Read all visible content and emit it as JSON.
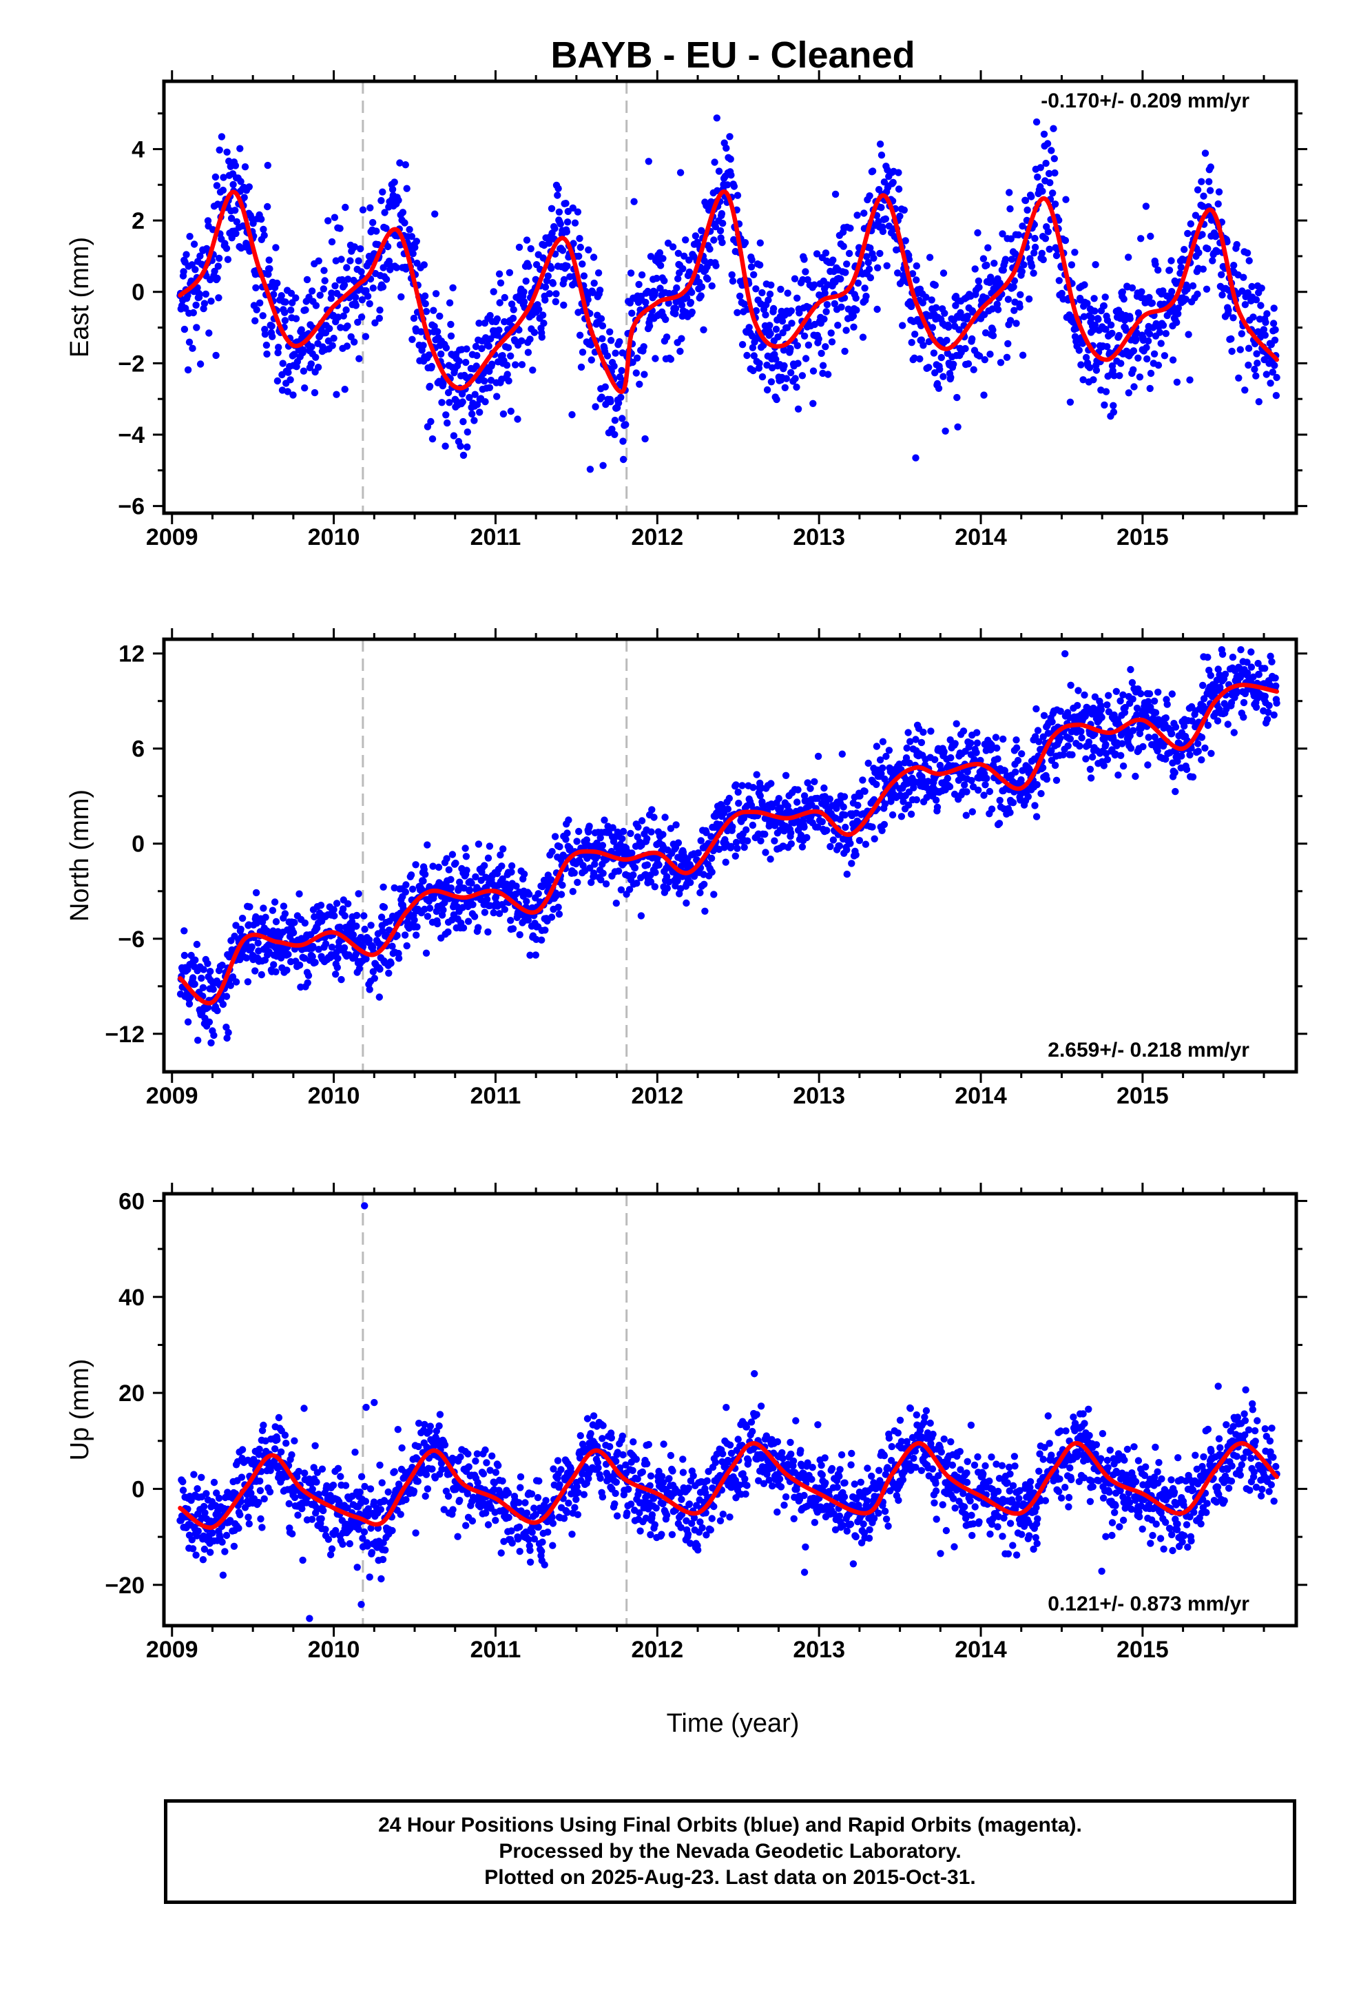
{
  "page": {
    "title": "BAYB  - EU - Cleaned",
    "x_axis_label": "Time (year)",
    "footer": [
      "24 Hour Positions Using Final Orbits (blue) and Rapid Orbits (magenta).",
      "Processed by the Nevada Geodetic Laboratory.",
      "Plotted on 2025-Aug-23. Last data on 2015-Oct-31."
    ]
  },
  "colors": {
    "points": "#0000ff",
    "fit_line": "#ff0000",
    "event_lines": "#bbbbbb",
    "frame": "#000000"
  },
  "chart_data": [
    {
      "type": "scatter",
      "name": "east",
      "ylabel": "East (mm)",
      "rate_text": "-0.170+/- 0.209 mm/yr",
      "rate_position": "top-right",
      "xlim": [
        2008.95,
        2015.95
      ],
      "ylim": [
        -6.2,
        5.9
      ],
      "x_ticks": [
        2009,
        2010,
        2011,
        2012,
        2013,
        2014,
        2015
      ],
      "y_ticks": [
        -6,
        -4,
        -2,
        0,
        2,
        4
      ],
      "event_lines_x": [
        2010.18,
        2011.81
      ],
      "data_start": 2009.05,
      "data_end": 2015.83,
      "trend_mm_per_yr": -0.17,
      "fit": {
        "x": [
          2009.05,
          2009.2,
          2009.38,
          2009.55,
          2009.75,
          2010.0,
          2010.15,
          2010.22,
          2010.4,
          2010.6,
          2010.78,
          2011.0,
          2011.2,
          2011.42,
          2011.6,
          2011.78,
          2011.85,
          2012.0,
          2012.2,
          2012.42,
          2012.6,
          2012.78,
          2013.0,
          2013.2,
          2013.4,
          2013.6,
          2013.78,
          2014.0,
          2014.2,
          2014.4,
          2014.6,
          2014.78,
          2015.0,
          2015.2,
          2015.42,
          2015.6,
          2015.83
        ],
        "y": [
          -0.1,
          0.6,
          2.8,
          0.5,
          -1.5,
          -0.4,
          0.2,
          0.5,
          1.7,
          -1.5,
          -2.7,
          -1.6,
          -0.5,
          1.5,
          -1.2,
          -2.8,
          -1.0,
          -0.3,
          0.2,
          2.8,
          -0.8,
          -1.5,
          -0.3,
          0.2,
          2.7,
          -0.3,
          -1.6,
          -0.5,
          0.5,
          2.6,
          -0.8,
          -1.9,
          -0.7,
          -0.2,
          2.3,
          -0.6,
          -1.9
        ]
      },
      "noise_sd_mm": 0.9
    },
    {
      "type": "scatter",
      "name": "north",
      "ylabel": "North (mm)",
      "rate_text": "2.659+/- 0.218 mm/yr",
      "rate_position": "bottom-right",
      "xlim": [
        2008.95,
        2015.95
      ],
      "ylim": [
        -14.4,
        12.9
      ],
      "x_ticks": [
        2009,
        2010,
        2011,
        2012,
        2013,
        2014,
        2015
      ],
      "y_ticks": [
        -12,
        -6,
        0,
        6,
        12
      ],
      "event_lines_x": [
        2010.18,
        2011.81
      ],
      "data_start": 2009.05,
      "data_end": 2015.83,
      "trend_mm_per_yr": 2.659,
      "fit": {
        "x": [
          2009.05,
          2009.25,
          2009.45,
          2009.65,
          2009.8,
          2010.0,
          2010.25,
          2010.45,
          2010.6,
          2010.8,
          2011.0,
          2011.25,
          2011.45,
          2011.6,
          2011.8,
          2012.0,
          2012.2,
          2012.45,
          2012.6,
          2012.8,
          2013.0,
          2013.2,
          2013.45,
          2013.6,
          2013.75,
          2014.0,
          2014.25,
          2014.45,
          2014.6,
          2014.8,
          2015.0,
          2015.25,
          2015.45,
          2015.6,
          2015.83
        ],
        "y": [
          -8.5,
          -10.0,
          -6.0,
          -6.2,
          -6.4,
          -5.6,
          -7.0,
          -4.3,
          -3.0,
          -3.4,
          -3.0,
          -4.3,
          -1.0,
          -0.5,
          -1.0,
          -0.6,
          -1.8,
          1.5,
          2.0,
          1.6,
          2.0,
          0.6,
          3.8,
          4.8,
          4.4,
          5.0,
          3.5,
          6.8,
          7.5,
          7.0,
          7.8,
          6.0,
          9.0,
          10.0,
          9.6
        ]
      },
      "noise_sd_mm": 1.2
    },
    {
      "type": "scatter",
      "name": "up",
      "ylabel": "Up (mm)",
      "x_axis_label": "Time (year)",
      "rate_text": "0.121+/- 0.873 mm/yr",
      "rate_position": "bottom-right",
      "xlim": [
        2008.95,
        2015.95
      ],
      "ylim": [
        -28.5,
        61.5
      ],
      "x_ticks": [
        2009,
        2010,
        2011,
        2012,
        2013,
        2014,
        2015
      ],
      "y_ticks": [
        -20,
        0,
        20,
        40,
        60
      ],
      "event_lines_x": [
        2010.18,
        2011.81
      ],
      "data_start": 2009.05,
      "data_end": 2015.83,
      "trend_mm_per_yr": 0.121,
      "fit": {
        "x": [
          2009.05,
          2009.25,
          2009.45,
          2009.62,
          2009.8,
          2010.0,
          2010.15,
          2010.3,
          2010.45,
          2010.62,
          2010.8,
          2011.0,
          2011.25,
          2011.45,
          2011.62,
          2011.8,
          2012.0,
          2012.25,
          2012.45,
          2012.6,
          2012.8,
          2013.0,
          2013.3,
          2013.45,
          2013.62,
          2013.8,
          2014.0,
          2014.25,
          2014.45,
          2014.6,
          2014.8,
          2015.0,
          2015.25,
          2015.45,
          2015.62,
          2015.83
        ],
        "y": [
          -4.0,
          -8.0,
          0.0,
          7.0,
          0.0,
          -4.0,
          -6.0,
          -7.0,
          1.0,
          8.0,
          1.0,
          -2.0,
          -7.0,
          1.0,
          8.0,
          2.0,
          -1.0,
          -5.0,
          4.0,
          9.5,
          3.0,
          -1.0,
          -5.0,
          3.0,
          9.5,
          2.5,
          -1.5,
          -5.0,
          4.0,
          9.5,
          2.0,
          -1.0,
          -5.0,
          4.0,
          9.5,
          2.5
        ]
      },
      "noise_sd_mm": 4.2,
      "outliers": [
        {
          "x": 2010.19,
          "y": 59
        },
        {
          "x": 2010.2,
          "y": 17
        },
        {
          "x": 2010.25,
          "y": 18
        },
        {
          "x": 2012.6,
          "y": 24
        },
        {
          "x": 2009.85,
          "y": -27
        }
      ]
    }
  ]
}
